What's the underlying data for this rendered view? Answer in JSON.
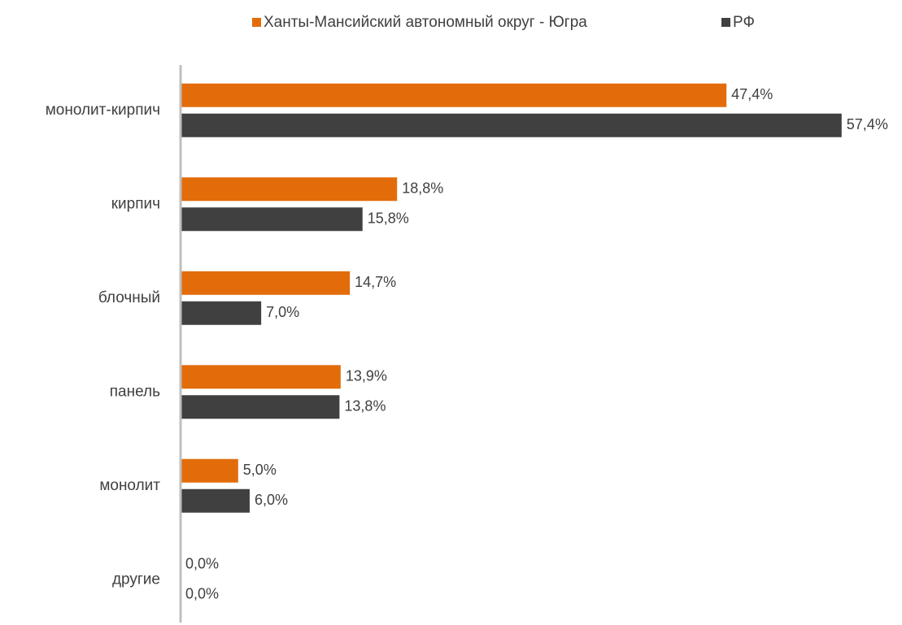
{
  "chart_data": {
    "type": "bar",
    "orientation": "horizontal",
    "categories": [
      "монолит-кирпич",
      "кирпич",
      "блочный",
      "панель",
      "монолит",
      "другие"
    ],
    "series": [
      {
        "name": "Ханты-Мансийский автономный округ - Югра",
        "color": "#E36C0A",
        "values": [
          47.4,
          18.8,
          14.7,
          13.9,
          5.0,
          0.0
        ],
        "value_labels": [
          "47,4%",
          "18,8%",
          "14,7%",
          "13,9%",
          "5,0%",
          "0,0%"
        ]
      },
      {
        "name": "РФ",
        "color": "#404040",
        "values": [
          57.4,
          15.8,
          7.0,
          13.8,
          6.0,
          0.0
        ],
        "value_labels": [
          "57,4%",
          "15,8%",
          "7,0%",
          "13,8%",
          "6,0%",
          "0,0%"
        ]
      }
    ],
    "xlim": [
      0,
      60
    ],
    "legend": "top"
  }
}
